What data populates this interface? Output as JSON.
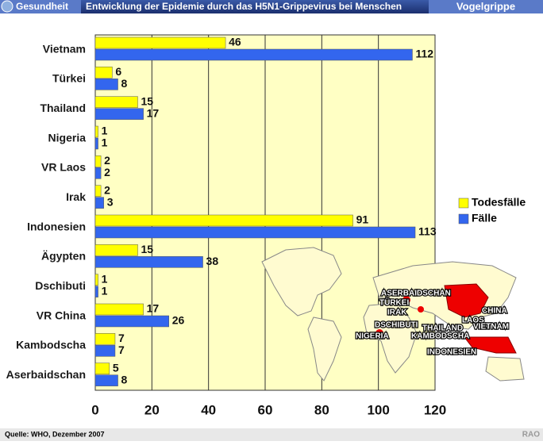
{
  "header": {
    "section": "Gesundheit",
    "topic": "Vogelgrippe"
  },
  "chart_data": {
    "type": "hbar",
    "title": "Entwicklung der Epidemie durch das H5N1-Grippevirus bei Menschen",
    "categories": [
      "Vietnam",
      "Türkei",
      "Thailand",
      "Nigeria",
      "VR Laos",
      "Irak",
      "Indonesien",
      "Ägypten",
      "Dschibuti",
      "VR China",
      "Kambodscha",
      "Aserbaidschan"
    ],
    "series": [
      {
        "name": "Todesfälle",
        "color": "#ffff00",
        "values": [
          46,
          6,
          15,
          1,
          2,
          2,
          91,
          15,
          1,
          17,
          7,
          5
        ]
      },
      {
        "name": "Fälle",
        "color": "#3366ee",
        "values": [
          112,
          8,
          17,
          1,
          2,
          3,
          113,
          38,
          1,
          26,
          7,
          8
        ]
      }
    ],
    "xlim": [
      0,
      120
    ],
    "xticks": [
      0,
      20,
      40,
      60,
      80,
      100,
      120
    ],
    "grid": true,
    "legend": "right",
    "map_labels": [
      "ASERBAIDSCHAN",
      "TÜRKEI",
      "IRAK",
      "CHINA",
      "LAOS",
      "VIETNAM",
      "DSCHIBUTI",
      "THAILAND",
      "NIGERIA",
      "KAMBODSCHA",
      "INDONESIEN"
    ]
  },
  "footer": {
    "source": "Quelle: WHO, Dezember 2007",
    "credit": "RAO"
  }
}
